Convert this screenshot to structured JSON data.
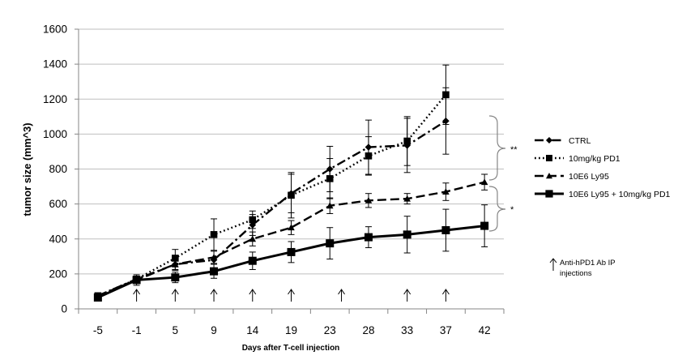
{
  "chart_data": {
    "type": "line",
    "xlabel": "Days after T-cell injection",
    "ylabel": "tumor size (mm^3)",
    "categories": [
      "-5",
      "-1",
      "5",
      "9",
      "14",
      "19",
      "23",
      "28",
      "33",
      "37",
      "42"
    ],
    "ylim": [
      0,
      1600
    ],
    "yticks": [
      0,
      200,
      400,
      600,
      800,
      1000,
      1200,
      1400,
      1600
    ],
    "grid": "horizontal",
    "legend_position": "right",
    "series": [
      {
        "name": "CTRL",
        "style": "dashdot",
        "marker": "diamond",
        "values": [
          75,
          170,
          255,
          280,
          480,
          660,
          800,
          925,
          935,
          1075,
          null
        ],
        "errors": [
          null,
          null,
          30,
          null,
          60,
          110,
          130,
          155,
          155,
          190,
          null
        ]
      },
      {
        "name": "10mg/kg PD1",
        "style": "dotted",
        "marker": "square",
        "values": [
          75,
          170,
          290,
          425,
          510,
          650,
          745,
          875,
          960,
          1225,
          null
        ],
        "errors": [
          null,
          null,
          50,
          90,
          50,
          130,
          115,
          110,
          140,
          170,
          null
        ]
      },
      {
        "name": "10E6 Ly95",
        "style": "dashed",
        "marker": "triangle",
        "values": [
          75,
          165,
          255,
          295,
          400,
          465,
          590,
          620,
          630,
          670,
          725
        ],
        "errors": [
          null,
          null,
          35,
          35,
          40,
          40,
          45,
          40,
          30,
          50,
          45
        ]
      },
      {
        "name": "10E6 Ly95 + 10mg/kg PD1",
        "style": "solid",
        "marker": "square",
        "values": [
          65,
          165,
          180,
          215,
          275,
          325,
          375,
          410,
          425,
          450,
          475
        ],
        "errors": [
          null,
          30,
          30,
          40,
          50,
          60,
          90,
          60,
          105,
          120,
          120
        ]
      }
    ],
    "injection_arrows_at_x": [
      -1,
      5,
      9,
      14,
      19,
      24.5,
      33,
      37
    ],
    "annotations": {
      "injection_legend": "Anti-hPD1 Ab IP injections",
      "significance_upper": "**",
      "significance_lower": "*"
    },
    "colors": {
      "lines": "#000000",
      "grid": "#bfbfbf",
      "axis": "#868686"
    }
  }
}
